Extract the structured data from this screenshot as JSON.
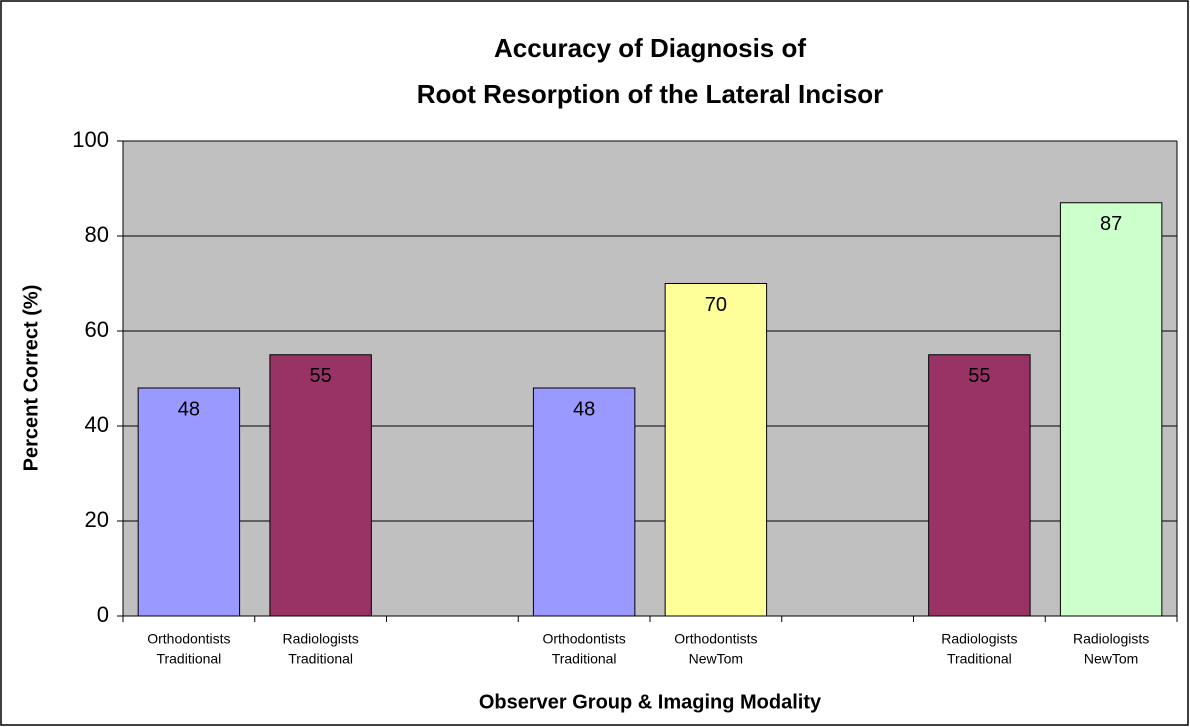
{
  "chart_data": {
    "type": "bar",
    "title": [
      "Accuracy of Diagnosis of",
      "Root Resorption of the Lateral Incisor"
    ],
    "x_label": "Observer Group & Imaging Modality",
    "y_label": "Percent Correct (%)",
    "categories": [
      [
        "Orthodontists",
        "Traditional"
      ],
      [
        "Radiologists",
        "Traditional"
      ],
      null,
      [
        "Orthodontists",
        "Traditional"
      ],
      [
        "Orthodontists",
        "NewTom"
      ],
      null,
      [
        "Radiologists",
        "Traditional"
      ],
      [
        "Radiologists",
        "NewTom"
      ]
    ],
    "values": [
      48,
      55,
      null,
      48,
      70,
      null,
      55,
      87
    ],
    "colors": [
      "#9999ff",
      "#993366",
      null,
      "#9999ff",
      "#ffff99",
      null,
      "#993366",
      "#ccffcc"
    ],
    "ylim": [
      0,
      100
    ],
    "yticks": [
      0,
      20,
      40,
      60,
      80,
      100
    ],
    "grid": true
  }
}
